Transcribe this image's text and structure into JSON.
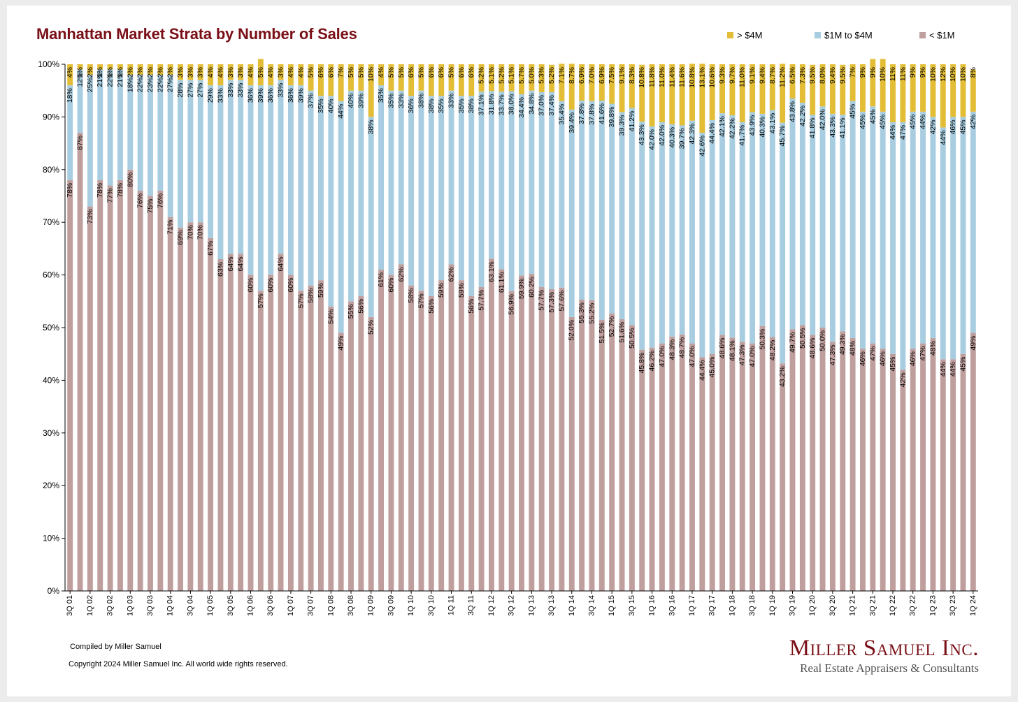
{
  "title": "Manhattan Market Strata by Number of Sales",
  "legend": [
    {
      "label": "> $4M",
      "color": "#e3bd35"
    },
    {
      "label": "$1M to $4M",
      "color": "#a8cde0"
    },
    {
      "label": "< $1M",
      "color": "#bf9f9d"
    }
  ],
  "footer": {
    "credit": "Compiled by Miller Samuel",
    "copyright": "Copyright 2024 Miller Samuel Inc.  All world wide rights reserved."
  },
  "logo": {
    "name": "Miller Samuel Inc.",
    "tagline": "Real Estate Appraisers & Consultants"
  },
  "chart_data": {
    "type": "bar",
    "stacked": true,
    "y_axis": {
      "min": 0,
      "max": 100,
      "step": 10,
      "format": "percent"
    },
    "tick_labels": [
      "3Q 01",
      "1Q 02",
      "3Q 02",
      "1Q 03",
      "3Q 03",
      "1Q 04",
      "3Q 04",
      "1Q 05",
      "3Q 05",
      "1Q 06",
      "3Q 06",
      "1Q 07",
      "3Q 07",
      "1Q 08",
      "3Q 08",
      "1Q 09",
      "3Q 09",
      "1Q 10",
      "3Q 10",
      "1Q 11",
      "3Q 11",
      "1Q 12",
      "3Q 12",
      "1Q 13",
      "3Q 13",
      "1Q 14",
      "3Q 14",
      "1Q 15",
      "3Q 15",
      "1Q 16",
      "3Q 16",
      "1Q 17",
      "3Q 17",
      "1Q 18",
      "3Q 18",
      "1Q 19",
      "3Q 19",
      "1Q 20",
      "3Q 20",
      "1Q 21",
      "3Q 21",
      "1Q 22",
      "3Q 22",
      "1Q 23",
      "3Q 23",
      "1Q 24"
    ],
    "series": [
      {
        "name": "< $1M",
        "color": "#bf9f9d",
        "values": [
          78,
          87,
          73,
          78,
          77,
          78,
          80,
          76,
          75,
          76,
          71,
          69,
          70,
          70,
          67,
          63,
          64,
          64,
          60,
          57,
          60,
          64,
          60,
          57,
          58,
          59,
          54,
          49,
          55,
          56,
          52,
          61,
          60,
          62,
          58,
          57,
          56,
          59,
          62,
          59,
          56,
          57.7,
          63.1,
          61.1,
          56.9,
          59.9,
          60.2,
          57.7,
          57.3,
          57.6,
          52.0,
          55.3,
          55.2,
          51.5,
          52.7,
          51.6,
          50.5,
          45.8,
          46.2,
          47.0,
          48.3,
          48.7,
          47.0,
          44.4,
          45.0,
          48.6,
          48.1,
          47.3,
          47.0,
          50.3,
          48.2,
          43.2,
          49.7,
          50.5,
          48.6,
          50.0,
          47.3,
          49.3,
          48,
          46,
          47,
          46,
          45,
          42,
          46,
          47,
          48,
          44,
          44,
          45,
          49
        ],
        "labels": [
          "78%",
          "87%",
          "73%",
          "78%",
          "77%",
          "78%",
          "80%",
          "76%",
          "75%",
          "76%",
          "71%",
          "69%",
          "70%",
          "70%",
          "67%",
          "63%",
          "64%",
          "64%",
          "60%",
          "57%",
          "60%",
          "64%",
          "60%",
          "57%",
          "58%",
          "59%",
          "54%",
          "49%",
          "55%",
          "56%",
          "52%",
          "61%",
          "60%",
          "62%",
          "58%",
          "57%",
          "56%",
          "59%",
          "62%",
          "59%",
          "56%",
          "57.7%",
          "63.1%",
          "61.1%",
          "56.9%",
          "59.9%",
          "60.2%",
          "57.7%",
          "57.3%",
          "57.6%",
          "52.0%",
          "55.3%",
          "55.2%",
          "51.5%",
          "52.7%",
          "51.6%",
          "50.5%",
          "45.8%",
          "46.2%",
          "47.0%",
          "48.3%",
          "48.7%",
          "47.0%",
          "44.4%",
          "45.0%",
          "48.6%",
          "48.1%",
          "47.3%",
          "47.0%",
          "50.3%",
          "48.2%",
          "43.2%",
          "49.7%",
          "50.5%",
          "48.6%",
          "50.0%",
          "47.3%",
          "49.3%",
          "48%",
          "46%",
          "47%",
          "46%",
          "45%",
          "42%",
          "46%",
          "47%",
          "48%",
          "44%",
          "44%",
          "45%",
          "49%"
        ]
      },
      {
        "name": "$1M to $4M",
        "color": "#a8cde0",
        "values": [
          18,
          12,
          25,
          21,
          22,
          21,
          18,
          22,
          23,
          22,
          27,
          28,
          27,
          27,
          29,
          33,
          33,
          33,
          36,
          39,
          36,
          33,
          36,
          39,
          37,
          35,
          40,
          44,
          40,
          39,
          38,
          35,
          35,
          33,
          36,
          38,
          38,
          35,
          33,
          35,
          38,
          37.1,
          31.8,
          33.7,
          38.0,
          34.4,
          34.8,
          37.0,
          37.4,
          35.4,
          39.4,
          37.8,
          37.8,
          41.6,
          39.8,
          39.3,
          41.2,
          43.3,
          42.0,
          42.0,
          40.3,
          39.7,
          42.3,
          42.6,
          44.4,
          42.1,
          42.2,
          41.7,
          43.9,
          40.3,
          43.1,
          45.7,
          43.8,
          42.2,
          41.8,
          42.0,
          43.3,
          41.1,
          45,
          45,
          45,
          45,
          44,
          47,
          45,
          44,
          42,
          44,
          46,
          45,
          42
        ],
        "labels": [
          "18%",
          "12%",
          "25%",
          "21%",
          "22%",
          "21%",
          "18%",
          "22%",
          "23%",
          "22%",
          "27%",
          "28%",
          "27%",
          "27%",
          "29%",
          "33%",
          "33%",
          "33%",
          "36%",
          "39%",
          "36%",
          "33%",
          "36%",
          "39%",
          "37%",
          "35%",
          "40%",
          "44%",
          "40%",
          "39%",
          "38%",
          "35%",
          "35%",
          "33%",
          "36%",
          "38%",
          "38%",
          "35%",
          "33%",
          "35%",
          "38%",
          "37.1%",
          "31.8%",
          "33.7%",
          "38.0%",
          "34.4%",
          "34.8%",
          "37.0%",
          "37.4%",
          "35.4%",
          "39.4%",
          "37.8%",
          "37.8%",
          "41.6%",
          "39.8%",
          "39.3%",
          "41.2%",
          "43.3%",
          "42.0%",
          "42.0%",
          "40.3%",
          "39.7%",
          "42.3%",
          "42.6%",
          "44.4%",
          "42.1%",
          "42.2%",
          "41.7%",
          "43.9%",
          "40.3%",
          "43.1%",
          "45.7%",
          "43.8%",
          "42.2%",
          "41.8%",
          "42.0%",
          "43.3%",
          "41.1%",
          "45%",
          "45%",
          "45%",
          "45%",
          "44%",
          "47%",
          "45%",
          "44%",
          "42%",
          "44%",
          "46%",
          "45%",
          "42%"
        ]
      },
      {
        "name": "> $4M",
        "color": "#e3bd35",
        "values": [
          4,
          1,
          2,
          1,
          1,
          1,
          2,
          2,
          2,
          2,
          2,
          3,
          3,
          3,
          4,
          4,
          3,
          3,
          4,
          5,
          4,
          3,
          4,
          4,
          5,
          6,
          6,
          7,
          5,
          5,
          10,
          4,
          5,
          5,
          6,
          5,
          6,
          6,
          5,
          6,
          6,
          5.2,
          5.1,
          5.2,
          5.1,
          5.7,
          5.0,
          5.3,
          5.2,
          7.1,
          8.7,
          6.9,
          7.0,
          6.9,
          7.5,
          9.1,
          8.3,
          10.8,
          11.8,
          11.0,
          11.4,
          11.6,
          10.8,
          13.1,
          10.6,
          9.3,
          9.7,
          11.0,
          9.1,
          9.4,
          8.7,
          11.2,
          6.5,
          7.3,
          9.5,
          8.0,
          9.4,
          9.5,
          7,
          9,
          9,
          10,
          11,
          11,
          9,
          9,
          10,
          12,
          10,
          10,
          8
        ],
        "labels": [
          "4%",
          "1%",
          "2%",
          "1%",
          "1%",
          "1%",
          "2%",
          "2%",
          "2%",
          "2%",
          "2%",
          "3%",
          "3%",
          "3%",
          "4%",
          "4%",
          "3%",
          "3%",
          "4%",
          "5%",
          "4%",
          "3%",
          "4%",
          "4%",
          "5%",
          "6%",
          "6%",
          "7%",
          "5%",
          "5%",
          "10%",
          "4%",
          "5%",
          "5%",
          "6%",
          "5%",
          "6%",
          "6%",
          "5%",
          "6%",
          "6%",
          "5.2%",
          "5.1%",
          "5.2%",
          "5.1%",
          "5.7%",
          "5.0%",
          "5.3%",
          "5.2%",
          "7.1%",
          "8.7%",
          "6.9%",
          "7.0%",
          "6.9%",
          "7.5%",
          "9.1%",
          "8.3%",
          "10.8%",
          "11.8%",
          "11.0%",
          "11.4%",
          "11.6%",
          "10.8%",
          "13.1%",
          "10.6%",
          "9.3%",
          "9.7%",
          "11.0%",
          "9.1%",
          "9.4%",
          "8.7%",
          "11.2%",
          "6.5%",
          "7.3%",
          "9.5%",
          "8.0%",
          "9.4%",
          "9.5%",
          "7%",
          "9%",
          "9%",
          "10%",
          "11%",
          "11%",
          "9%",
          "9%",
          "10%",
          "12%",
          "10%",
          "10%",
          "8%"
        ]
      }
    ]
  }
}
